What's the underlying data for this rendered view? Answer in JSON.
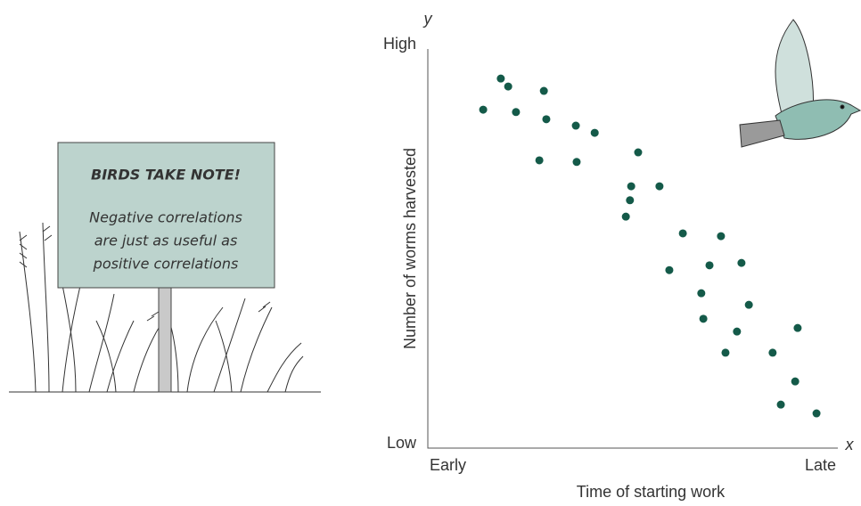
{
  "chart_data": {
    "type": "scatter",
    "annotations": [
      "BIRDS TAKE NOTE!",
      "Negative correlations",
      "are just as useful as",
      "positive correlations"
    ],
    "xlabel": "Time of starting work",
    "ylabel": "Number of worms harvested",
    "x_axis_symbol": "x",
    "y_axis_symbol": "y",
    "color": "#145a49",
    "xlim": [
      0,
      100
    ],
    "ylim": [
      0,
      100
    ],
    "xticks": [
      {
        "value": 0,
        "label": "Early"
      },
      {
        "value": 100,
        "label": "Late"
      }
    ],
    "yticks": [
      {
        "value": 0,
        "label": "Low"
      },
      {
        "value": 100,
        "label": "High"
      }
    ],
    "grid": false,
    "x": [
      13.5,
      17.8,
      19.6,
      21.5,
      28.3,
      28.9,
      27.2,
      36.1,
      40.7,
      36.3,
      51.3,
      49.6,
      49.3,
      48.3,
      56.5,
      62.2,
      71.5,
      58.9,
      68.7,
      76.5,
      66.7,
      78.3,
      67.2,
      75.4,
      72.6,
      84.1,
      90.2,
      89.6,
      86.1,
      94.8
    ],
    "values": [
      84.8,
      92.6,
      90.6,
      84.2,
      89.5,
      82.4,
      72.1,
      80.8,
      79.0,
      71.7,
      74.1,
      65.6,
      62.1,
      58.0,
      65.6,
      53.8,
      53.1,
      44.6,
      45.8,
      46.4,
      38.8,
      35.9,
      32.4,
      29.2,
      23.9,
      23.9,
      30.1,
      16.7,
      10.9,
      8.7
    ]
  }
}
